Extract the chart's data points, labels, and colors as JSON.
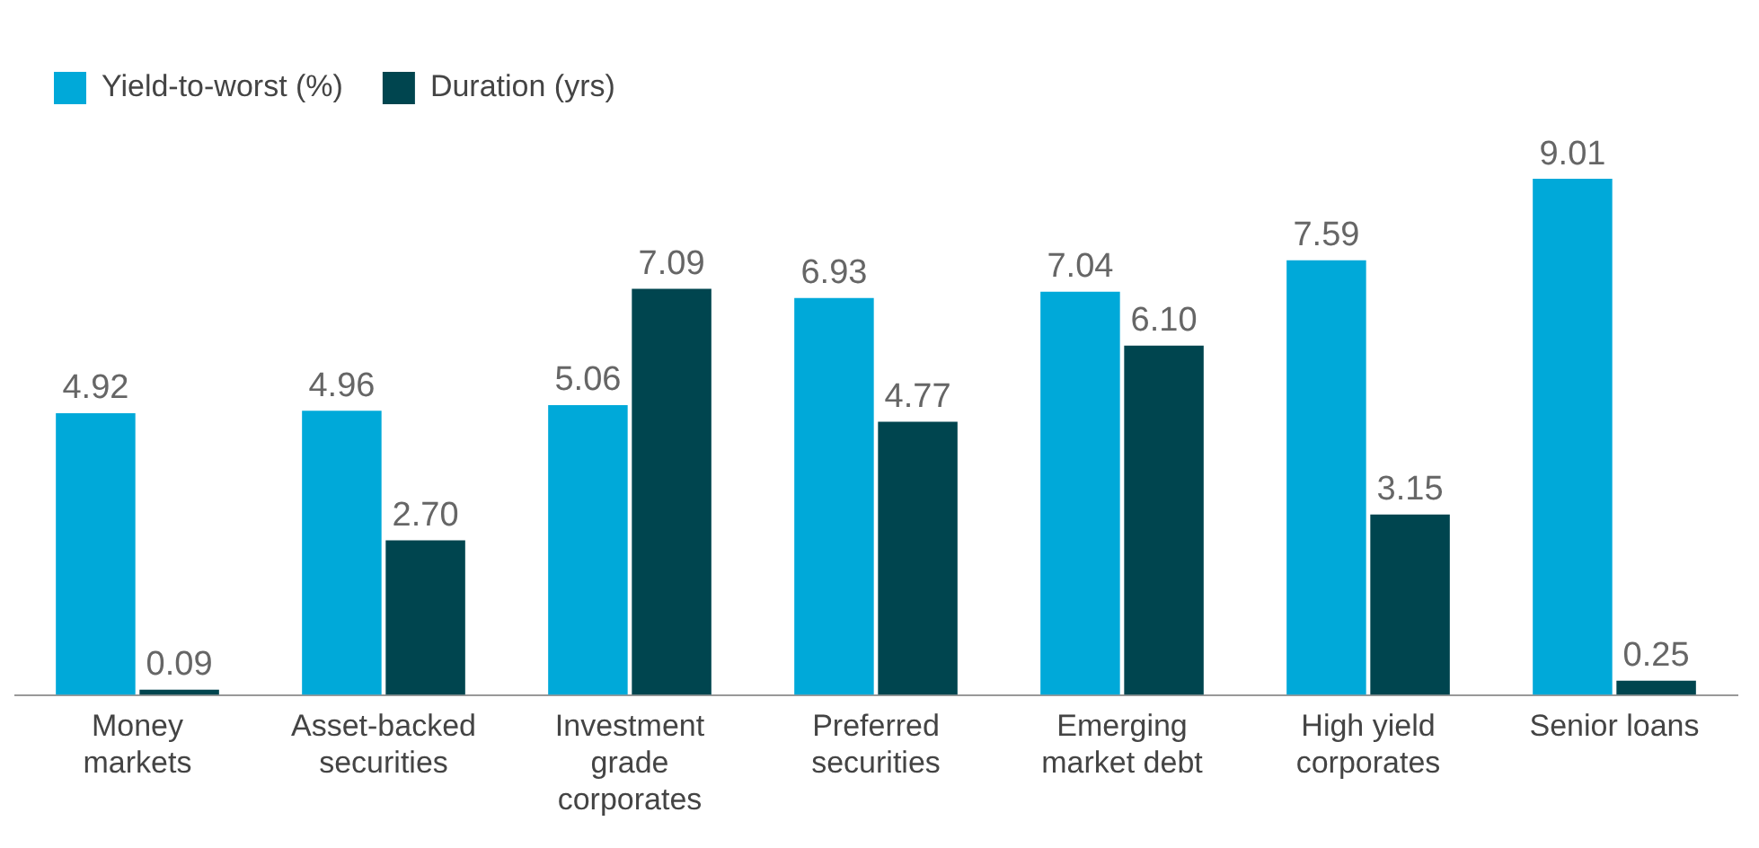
{
  "chart_data": {
    "type": "bar",
    "categories": [
      "Money markets",
      "Asset-backed securities",
      "Investment grade corporates",
      "Preferred securities",
      "Emerging market debt",
      "High yield corporates",
      "Senior loans"
    ],
    "series": [
      {
        "name": "Yield-to-worst (%)",
        "color": "#00a9d9",
        "values": [
          4.92,
          4.96,
          5.06,
          6.93,
          7.04,
          7.59,
          9.01
        ],
        "value_labels": [
          "4.92",
          "4.96",
          "5.06",
          "6.93",
          "7.04",
          "7.59",
          "9.01"
        ]
      },
      {
        "name": "Duration (yrs)",
        "color": "#00454f",
        "values": [
          0.09,
          2.7,
          7.09,
          4.77,
          6.1,
          3.15,
          0.25
        ],
        "value_labels": [
          "0.09",
          "2.70",
          "7.09",
          "4.77",
          "6.10",
          "3.15",
          "0.25"
        ]
      }
    ],
    "legend": "top left",
    "grid": false
  }
}
